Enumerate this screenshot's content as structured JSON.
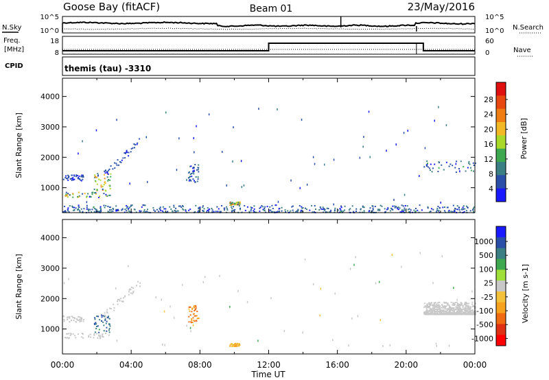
{
  "header": {
    "station": "Goose Bay (fitACF)",
    "beam": "Beam 01",
    "date": "23/May/2016"
  },
  "top_panels": {
    "nsky_label": "N.Sky",
    "nsearch_label": "N.Search",
    "freq_label": "Freq.",
    "freq_unit": "[MHz]",
    "nave_label": "Nave",
    "cpid_label": "CPID",
    "cpid_text": "themis (tau) -3310",
    "noise_ticks": [
      "10^5",
      "10^0"
    ],
    "freq_ticks": [
      "18",
      "8"
    ],
    "nave_ticks": [
      "60",
      "0"
    ]
  },
  "axes": {
    "ylabel": "Slant Range [km]",
    "xlabel": "Time UT",
    "yticks": [
      "1000",
      "2000",
      "3000",
      "4000"
    ],
    "xticks": [
      "00:00",
      "04:00",
      "08:00",
      "12:00",
      "16:00",
      "20:00",
      "00:00"
    ]
  },
  "power_scale": {
    "label": "Power [dB]",
    "ticks": [
      "4",
      "8",
      "12",
      "16",
      "20",
      "24",
      "28"
    ],
    "colors": [
      "#1a1aff",
      "#2a4fa8",
      "#3b7e84",
      "#3ea84e",
      "#a9d829",
      "#f3b825",
      "#f07d12",
      "#e8470f",
      "#e01010"
    ]
  },
  "velocity_scale": {
    "label": "Velocity [m s-1]",
    "ticks": [
      "1000",
      "500",
      "100",
      "25",
      "-25",
      "-100",
      "-500",
      "-1000"
    ],
    "colors": [
      "#1a1aff",
      "#2a4fa8",
      "#3b7e84",
      "#3ea84e",
      "#9fe03a",
      "#c8c8c8",
      "#f3c23a",
      "#f7a21e",
      "#ef6a10",
      "#e03014",
      "#ff0000"
    ]
  },
  "chart_data": [
    {
      "type": "heatmap",
      "title": "Power",
      "x_range": [
        "00:00",
        "24:00"
      ],
      "ylim": [
        180,
        4600
      ],
      "ylabel": "Slant Range [km]",
      "xlabel": "Time UT",
      "colorbar_label": "Power [dB]",
      "features": [
        {
          "t": [
            0.0,
            1.2
          ],
          "range_km": [
            1250,
            1450
          ],
          "power_db": [
            4,
            8
          ]
        },
        {
          "t": [
            0.1,
            2.8
          ],
          "range_km": [
            700,
            880
          ],
          "power_db": [
            4,
            24
          ]
        },
        {
          "t": [
            1.8,
            2.8
          ],
          "range_km": [
            900,
            1500
          ],
          "power_db": [
            8,
            24
          ]
        },
        {
          "t": [
            2.4,
            4.5
          ],
          "range_km": [
            1450,
            2550
          ],
          "power_db": [
            4,
            8
          ]
        },
        {
          "t": [
            7.3,
            7.9
          ],
          "range_km": [
            1200,
            1800
          ],
          "power_db": [
            4,
            12
          ]
        },
        {
          "t": [
            9.7,
            10.3
          ],
          "range_km": [
            450,
            550
          ],
          "power_db": [
            8,
            24
          ]
        },
        {
          "t": [
            0.0,
            24.0
          ],
          "range_km": [
            180,
            450
          ],
          "power_db": [
            4,
            12
          ]
        },
        {
          "t": [
            21.0,
            24.0
          ],
          "range_km": [
            1500,
            1900
          ],
          "power_db": [
            4,
            12
          ]
        }
      ]
    },
    {
      "type": "heatmap",
      "title": "Velocity",
      "x_range": [
        "00:00",
        "24:00"
      ],
      "ylim": [
        180,
        4600
      ],
      "ylabel": "Slant Range [km]",
      "xlabel": "Time UT",
      "colorbar_label": "Velocity [m s-1]",
      "features": [
        {
          "t": [
            0.0,
            1.2
          ],
          "range_km": [
            1250,
            1450
          ],
          "velocity_ms": [
            -25,
            25
          ]
        },
        {
          "t": [
            0.1,
            2.8
          ],
          "range_km": [
            700,
            880
          ],
          "velocity_ms": [
            -25,
            25
          ]
        },
        {
          "t": [
            1.8,
            2.8
          ],
          "range_km": [
            900,
            1500
          ],
          "velocity_ms": [
            25,
            500
          ]
        },
        {
          "t": [
            2.4,
            4.5
          ],
          "range_km": [
            1450,
            2550
          ],
          "velocity_ms": [
            -25,
            25
          ]
        },
        {
          "t": [
            7.3,
            7.9
          ],
          "range_km": [
            1200,
            1800
          ],
          "velocity_ms": [
            -500,
            -25
          ]
        },
        {
          "t": [
            9.7,
            10.3
          ],
          "range_km": [
            450,
            550
          ],
          "velocity_ms": [
            -100,
            -25
          ]
        },
        {
          "t": [
            21.0,
            24.0
          ],
          "range_km": [
            1500,
            1900
          ],
          "velocity_ms": [
            -25,
            25
          ]
        }
      ]
    }
  ]
}
